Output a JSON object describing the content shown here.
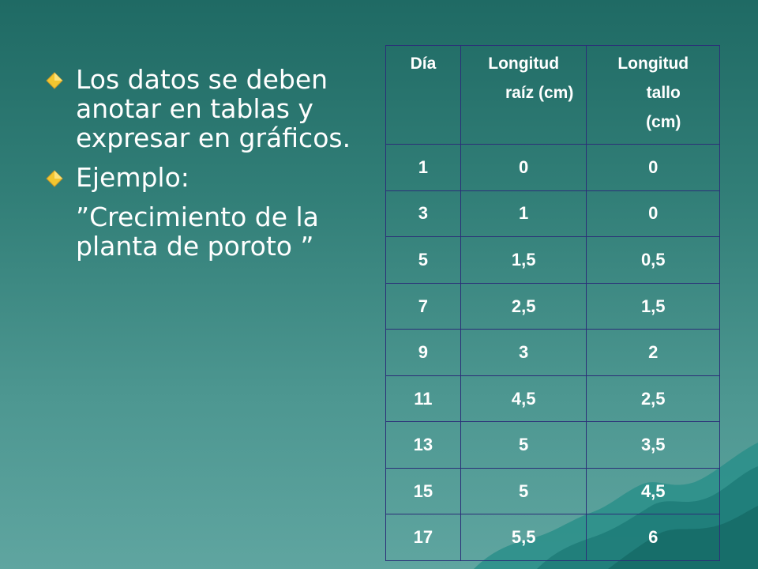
{
  "content": {
    "bullets": [
      {
        "text": "Los datos se deben anotar en tablas y expresar en gráficos.",
        "marker_icon": "diamond-bullet-icon"
      },
      {
        "text": "Ejemplo:",
        "marker_icon": "diamond-bullet-icon"
      }
    ],
    "example_text": "”Crecimiento de la planta de poroto ”"
  },
  "table": {
    "headers": {
      "dia": "Día",
      "raiz_line1": "Longitud",
      "raiz_line2": "raíz (cm)",
      "tallo_line1": "Longitud",
      "tallo_line2": "tallo",
      "tallo_line3": "(cm)"
    },
    "rows": [
      [
        "1",
        "0",
        "0"
      ],
      [
        "3",
        "1",
        "0"
      ],
      [
        "5",
        "1,5",
        "0,5"
      ],
      [
        "7",
        "2,5",
        "1,5"
      ],
      [
        "9",
        "3",
        "2"
      ],
      [
        "11",
        "4,5",
        "2,5"
      ],
      [
        "13",
        "5",
        "3,5"
      ],
      [
        "15",
        "5",
        "4,5"
      ],
      [
        "17",
        "5,5",
        "6"
      ]
    ]
  },
  "colors": {
    "background_top": "#1f6a64",
    "background_bottom": "#5fa5a0",
    "bullet_marker": "#f2c630",
    "table_border": "#2b2f78",
    "text": "#ffffff"
  }
}
